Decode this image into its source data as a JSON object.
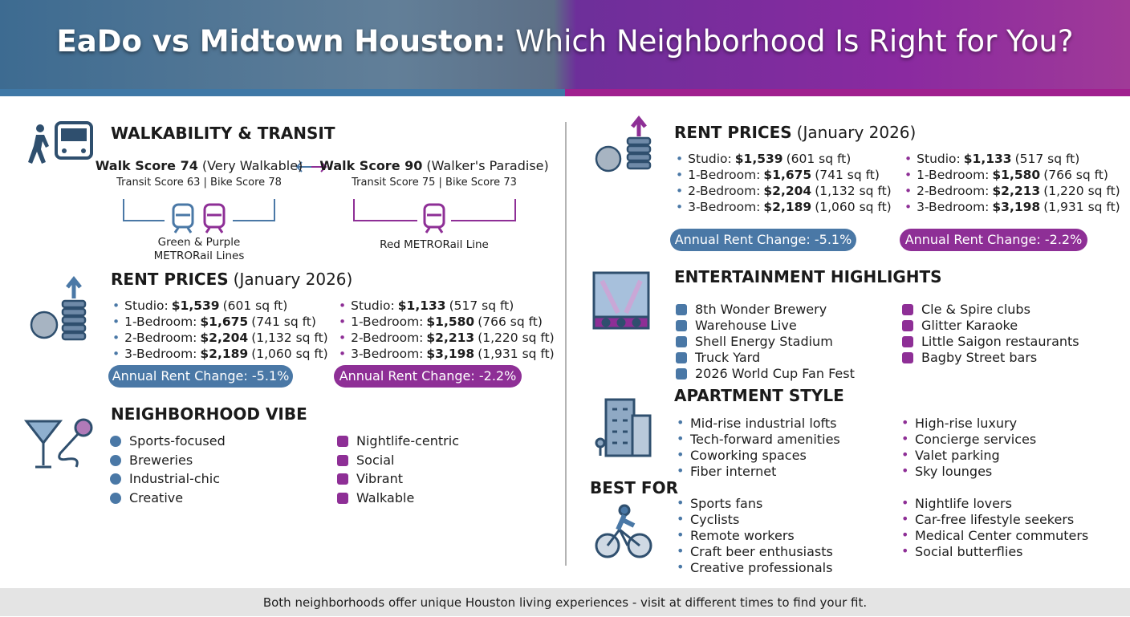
{
  "header": {
    "title_bold": "EaDo vs Midtown Houston:",
    "title_rest": "Which Neighborhood Is Right for You?"
  },
  "walkability": {
    "title": "WALKABILITY & TRANSIT",
    "eado": {
      "walk_score": "Walk Score 74",
      "walk_note": "(Very Walkable)",
      "transit": "Transit Score 63 | Bike Score 78",
      "rail": "Green & Purple METRORail Lines"
    },
    "midtown": {
      "walk_score": "Walk Score 90",
      "walk_note": "(Walker's Paradise)",
      "transit": "Transit Score 75 | Bike Score 73",
      "rail": "Red METRORail Line"
    }
  },
  "rent_prices": {
    "title": "RENT PRICES",
    "subtitle": "(January 2026)",
    "eado": {
      "items": [
        {
          "label": "Studio:",
          "price": "$1,539",
          "size": "(601 sq ft)"
        },
        {
          "label": "1-Bedroom:",
          "price": "$1,675",
          "size": "(741 sq ft)"
        },
        {
          "label": "2-Bedroom:",
          "price": "$2,204",
          "size": "(1,132 sq ft)"
        },
        {
          "label": "3-Bedroom:",
          "price": "$2,189",
          "size": "(1,060 sq ft)"
        }
      ],
      "change": "Annual Rent Change: -5.1%"
    },
    "midtown": {
      "items": [
        {
          "label": "Studio:",
          "price": "$1,133",
          "size": "(517 sq ft)"
        },
        {
          "label": "1-Bedroom:",
          "price": "$1,580",
          "size": "(766 sq ft)"
        },
        {
          "label": "2-Bedroom:",
          "price": "$2,213",
          "size": "(1,220 sq ft)"
        },
        {
          "label": "3-Bedroom:",
          "price": "$3,198",
          "size": "(1,931 sq ft)"
        }
      ],
      "change": "Annual Rent Change: -2.2%"
    }
  },
  "vibe": {
    "title": "NEIGHBORHOOD VIBE",
    "eado": [
      "Sports-focused",
      "Breweries",
      "Industrial-chic",
      "Creative"
    ],
    "midtown": [
      "Nightlife-centric",
      "Social",
      "Vibrant",
      "Walkable"
    ]
  },
  "entertainment": {
    "title": "ENTERTAINMENT HIGHLIGHTS",
    "eado": [
      "8th Wonder Brewery",
      "Warehouse Live",
      "Shell Energy Stadium",
      "Truck Yard",
      "2026 World Cup Fan Fest"
    ],
    "midtown": [
      "Cle & Spire clubs",
      "Glitter Karaoke",
      "Little Saigon restaurants",
      "Bagby Street bars"
    ]
  },
  "apartment_style": {
    "title": "APARTMENT STYLE",
    "eado": [
      "Mid-rise industrial lofts",
      "Tech-forward amenities",
      "Coworking spaces",
      "Fiber internet"
    ],
    "midtown": [
      "High-rise luxury",
      "Concierge services",
      "Valet parking",
      "Sky lounges"
    ]
  },
  "best_for": {
    "title": "BEST FOR",
    "eado": [
      "Sports fans",
      "Cyclists",
      "Remote workers",
      "Craft beer enthusiasts",
      "Creative professionals"
    ],
    "midtown": [
      "Nightlife lovers",
      "Car-free lifestyle seekers",
      "Medical Center commuters",
      "Social butterflies"
    ]
  },
  "footer": {
    "text": "Both neighborhoods offer unique Houston living experiences - visit at different times to find your fit."
  }
}
